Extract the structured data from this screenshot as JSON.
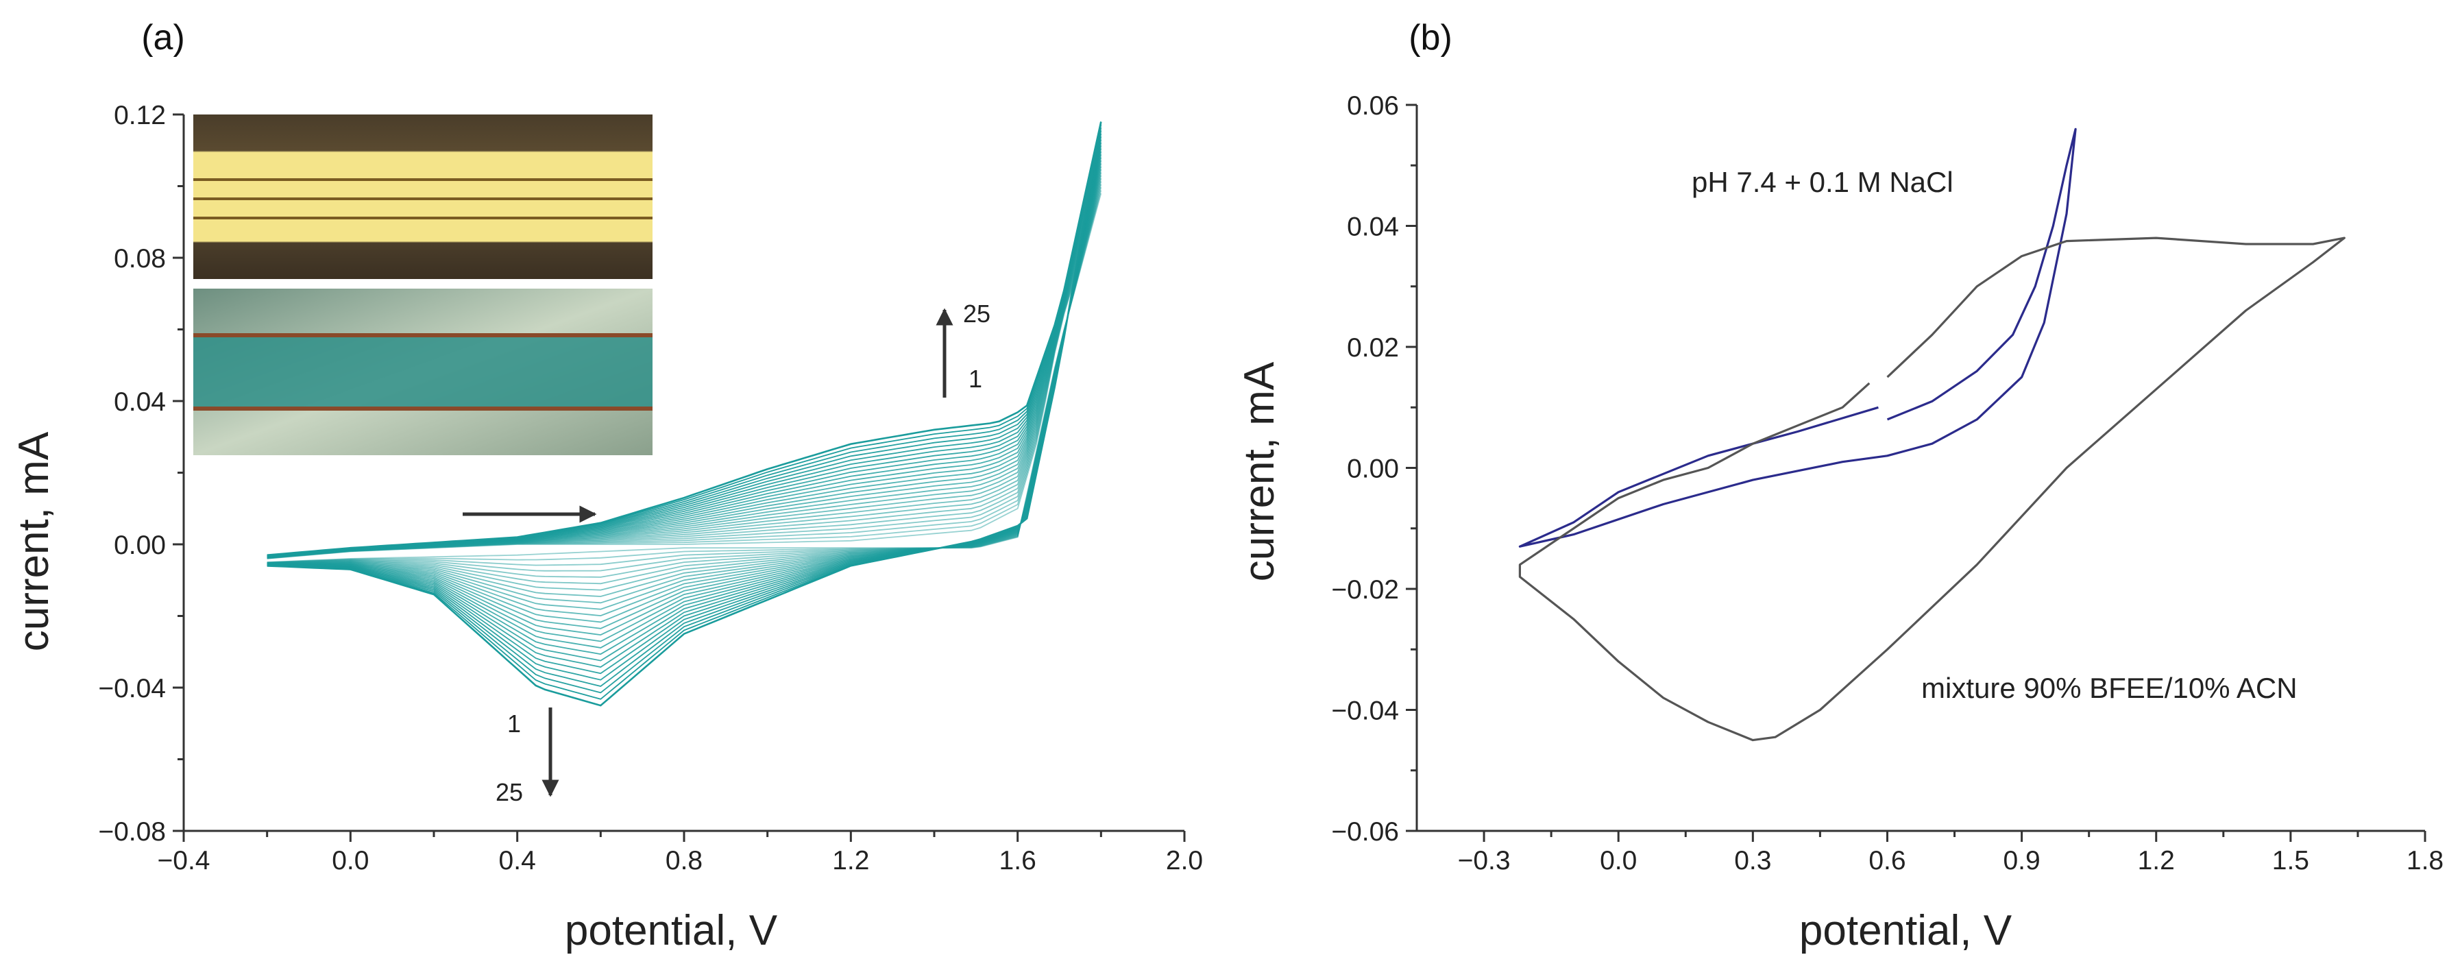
{
  "chart_data": [
    {
      "panel": "(a)",
      "type": "line",
      "title": "",
      "xlabel": "potential, V",
      "ylabel": "current, mA",
      "xlim": [
        -0.4,
        2.0
      ],
      "ylim": [
        -0.08,
        0.12
      ],
      "xticks": [
        "−0.4",
        "0.0",
        "0.4",
        "0.8",
        "1.2",
        "1.6",
        "2.0"
      ],
      "yticks": [
        "−0.08",
        "−0.04",
        "0.00",
        "0.04",
        "0.08",
        "0.12"
      ],
      "xtick_values": [
        -0.4,
        0.0,
        0.4,
        0.8,
        1.2,
        1.6,
        2.0
      ],
      "ytick_values": [
        -0.08,
        -0.04,
        0.0,
        0.04,
        0.08,
        0.12
      ],
      "cycles": 25,
      "series_color": "#1a9c9c",
      "cycle_1": {
        "name": "cycle 1",
        "anodic": {
          "x": [
            -0.2,
            0.0,
            0.4,
            0.8,
            1.2,
            1.5,
            1.6,
            1.65,
            1.7,
            1.8
          ],
          "y": [
            -0.004,
            -0.002,
            0.0,
            0.0,
            0.001,
            0.004,
            0.01,
            0.03,
            0.06,
            0.098
          ]
        },
        "cathodic": {
          "x": [
            1.8,
            1.7,
            1.6,
            1.5,
            1.2,
            0.8,
            0.6,
            0.4,
            0.0,
            -0.2
          ],
          "y": [
            0.098,
            0.055,
            0.002,
            -0.001,
            -0.001,
            -0.001,
            -0.002,
            -0.003,
            -0.004,
            -0.005
          ]
        }
      },
      "cycle_25": {
        "name": "cycle 25",
        "anodic": {
          "x": [
            -0.2,
            0.0,
            0.4,
            0.6,
            0.8,
            1.0,
            1.2,
            1.4,
            1.55,
            1.62,
            1.7,
            1.8
          ],
          "y": [
            -0.003,
            -0.001,
            0.002,
            0.006,
            0.013,
            0.021,
            0.028,
            0.032,
            0.034,
            0.038,
            0.065,
            0.118
          ]
        },
        "cathodic": {
          "x": [
            1.8,
            1.7,
            1.62,
            1.5,
            1.2,
            0.8,
            0.6,
            0.45,
            0.2,
            0.0,
            -0.2
          ],
          "y": [
            0.118,
            0.05,
            0.006,
            0.001,
            -0.006,
            -0.025,
            -0.045,
            -0.04,
            -0.014,
            -0.007,
            -0.006
          ]
        }
      },
      "annotations": [
        {
          "text": "25",
          "note": "up arrow near 1.45 V; anodic current grows with cycle number"
        },
        {
          "text": "1",
          "note": "below the up arrow"
        },
        {
          "text": "1",
          "note": "above the down arrow near 0.47 V"
        },
        {
          "text": "25",
          "note": "below the down arrow; cathodic peak deepens with cycle number"
        },
        {
          "text": "",
          "note": "horizontal arrow pointing right at 0.3–0.7 V: scan direction"
        }
      ],
      "inset": {
        "description": "two micrographs of the electrode: top bright gold lines on a dark background, bottom polymer-coated teal strip"
      }
    },
    {
      "panel": "(b)",
      "type": "line",
      "title": "",
      "xlabel": "potential, V",
      "ylabel": "current, mA",
      "xlim": [
        -0.45,
        1.8
      ],
      "ylim": [
        -0.06,
        0.06
      ],
      "xticks": [
        "−0.3",
        "0.0",
        "0.3",
        "0.6",
        "0.9",
        "1.2",
        "1.5",
        "1.8"
      ],
      "yticks": [
        "−0.06",
        "−0.04",
        "−0.02",
        "0.00",
        "0.02",
        "0.04",
        "0.06"
      ],
      "xtick_values": [
        -0.3,
        0.0,
        0.3,
        0.6,
        0.9,
        1.2,
        1.5,
        1.8
      ],
      "ytick_values": [
        -0.06,
        -0.04,
        -0.02,
        0.0,
        0.02,
        0.04,
        0.06
      ],
      "series": [
        {
          "name": "pH 7.4 + 0.1 M NaCl",
          "color": "#2b2b8c",
          "x": [
            0.58,
            0.4,
            0.2,
            0.0,
            -0.1,
            -0.22,
            -0.1,
            0.1,
            0.3,
            0.5,
            0.6,
            0.7,
            0.8,
            0.9,
            0.95,
            1.0,
            1.02,
            1.0,
            0.97,
            0.93,
            0.88,
            0.8,
            0.7,
            0.6
          ],
          "y": [
            0.01,
            0.006,
            0.002,
            -0.004,
            -0.009,
            -0.013,
            -0.011,
            -0.006,
            -0.002,
            0.001,
            0.002,
            0.004,
            0.008,
            0.015,
            0.024,
            0.042,
            0.056,
            0.05,
            0.04,
            0.03,
            0.022,
            0.016,
            0.011,
            0.008
          ]
        },
        {
          "name": "mixture 90% BFEE/10% ACN",
          "color": "#555555",
          "x": [
            0.56,
            0.5,
            0.4,
            0.3,
            0.2,
            0.1,
            0.0,
            -0.1,
            -0.22,
            -0.22,
            -0.1,
            0.0,
            0.1,
            0.2,
            0.3,
            0.35,
            0.45,
            0.6,
            0.8,
            1.0,
            1.2,
            1.4,
            1.55,
            1.62,
            1.55,
            1.4,
            1.2,
            1.0,
            0.9,
            0.8,
            0.7,
            0.6
          ],
          "y": [
            0.014,
            0.01,
            0.007,
            0.004,
            0.0,
            -0.002,
            -0.005,
            -0.01,
            -0.016,
            -0.018,
            -0.025,
            -0.032,
            -0.038,
            -0.042,
            -0.045,
            -0.0445,
            -0.04,
            -0.03,
            -0.016,
            0.0,
            0.013,
            0.026,
            0.034,
            0.038,
            0.037,
            0.037,
            0.038,
            0.0375,
            0.035,
            0.03,
            0.022,
            0.015
          ]
        }
      ]
    }
  ]
}
